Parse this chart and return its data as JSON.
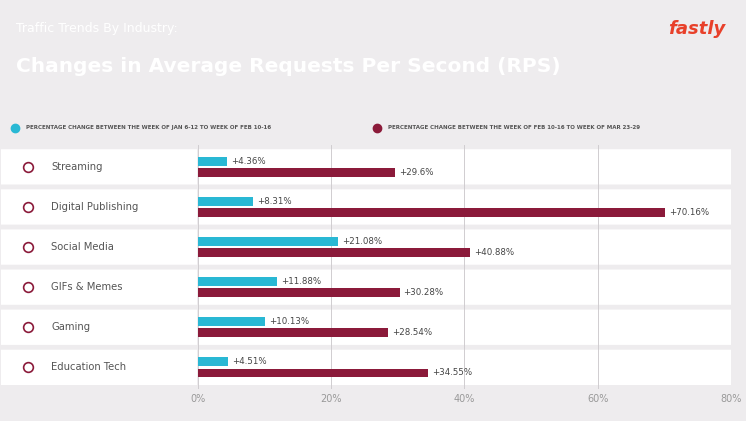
{
  "title_line1": "Traffic Trends By Industry:",
  "title_line2": "Changes in Average Requests Per Second (RPS)",
  "brand": "fastly",
  "header_bg": "#5c1033",
  "chart_bg": "#eeecee",
  "bar_bg": "#ffffff",
  "legend1_text": "PERCENTAGE CHANGE BETWEEN THE WEEK OF JAN 6-12 TO WEEK OF FEB 10-16",
  "legend2_text": "PERCENTAGE CHANGE BETWEEN THE WEEK OF FEB 10-16 TO WEEK OF MAR 23-29",
  "color_blue": "#29b8d4",
  "color_red": "#8b1a3a",
  "text_color": "#666666",
  "categories": [
    "Streaming",
    "Digital Publishing",
    "Social Media",
    "GIFs & Memes",
    "Gaming",
    "Education Tech"
  ],
  "values_blue": [
    4.36,
    8.31,
    21.08,
    11.88,
    10.13,
    4.51
  ],
  "values_red": [
    29.6,
    70.16,
    40.88,
    30.28,
    28.54,
    34.55
  ],
  "labels_blue": [
    "+4.36%",
    "+8.31%",
    "+21.08%",
    "+11.88%",
    "+10.13%",
    "+4.51%"
  ],
  "labels_red": [
    "+29.6%",
    "+70.16%",
    "+40.88%",
    "+30.28%",
    "+28.54%",
    "+34.55%"
  ],
  "xlim": [
    0,
    80
  ],
  "xticks": [
    0,
    20,
    40,
    60,
    80
  ],
  "xticklabels": [
    "0%",
    "20%",
    "40%",
    "60%",
    "80%"
  ]
}
